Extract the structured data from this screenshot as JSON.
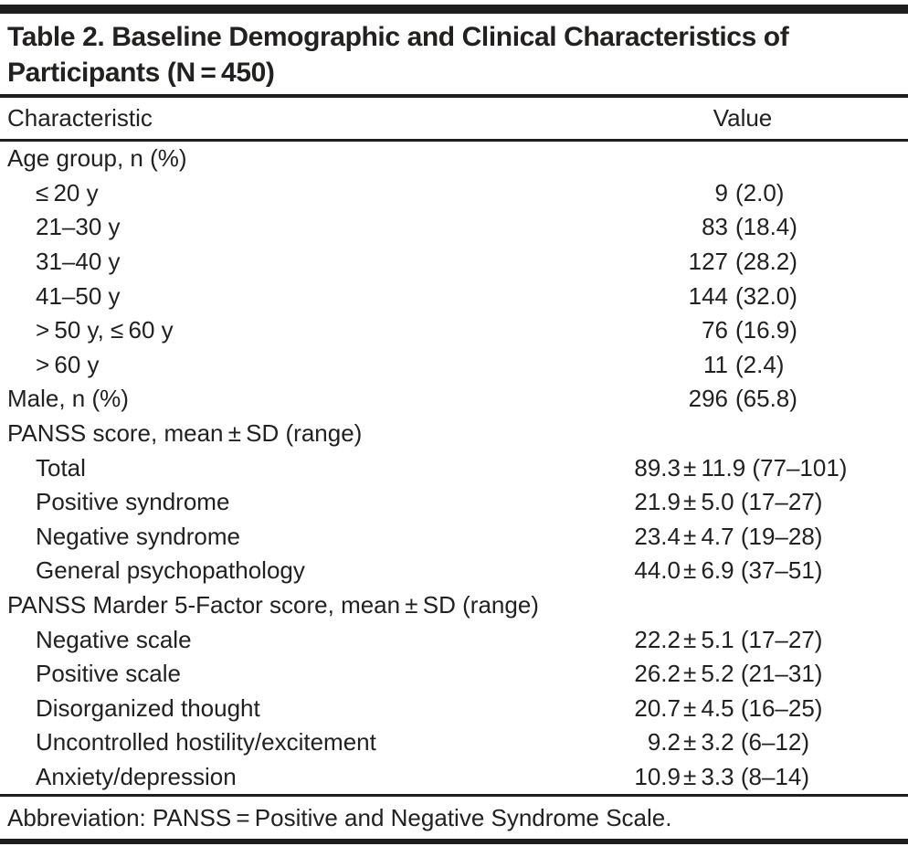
{
  "table": {
    "title_line1": "Table 2. Baseline Demographic and Clinical Characteristics of",
    "title_line2": "Participants (N = 450)",
    "columns": {
      "characteristic": "Characteristic",
      "value": "Value"
    },
    "rows": [
      {
        "label": "Age group, n (%)",
        "num": "",
        "rest": ""
      },
      {
        "label": "≤ 20 y",
        "num": "9",
        "rest": "(2.0)"
      },
      {
        "label": "21–30 y",
        "num": "83",
        "rest": "(18.4)"
      },
      {
        "label": "31–40 y",
        "num": "127",
        "rest": "(28.2)"
      },
      {
        "label": "41–50 y",
        "num": "144",
        "rest": "(32.0)"
      },
      {
        "label": "> 50 y, ≤ 60 y",
        "num": "76",
        "rest": "(16.9)"
      },
      {
        "label": "> 60 y",
        "num": "11",
        "rest": "(2.4)"
      },
      {
        "label": "Male, n (%)",
        "num": "296",
        "rest": "(65.8)"
      },
      {
        "label": "PANSS score, mean ± SD (range)",
        "num": "",
        "rest": ""
      },
      {
        "label": "Total",
        "num": "89.3",
        "rest": "± 11.9 (77–101)"
      },
      {
        "label": "Positive syndrome",
        "num": "21.9",
        "rest": "± 5.0 (17–27)"
      },
      {
        "label": "Negative syndrome",
        "num": "23.4",
        "rest": "± 4.7 (19–28)"
      },
      {
        "label": "General psychopathology",
        "num": "44.0",
        "rest": "± 6.9 (37–51)"
      },
      {
        "label": "PANSS Marder 5-Factor score, mean ± SD (range)",
        "num": "",
        "rest": ""
      },
      {
        "label": "Negative scale",
        "num": "22.2",
        "rest": "± 5.1 (17–27)"
      },
      {
        "label": "Positive scale",
        "num": "26.2",
        "rest": "± 5.2 (21–31)"
      },
      {
        "label": "Disorganized thought",
        "num": "20.7",
        "rest": "± 4.5 (16–25)"
      },
      {
        "label": "Uncontrolled hostility/excitement",
        "num": "9.2",
        "rest": "± 3.2 (6–12)"
      },
      {
        "label": "Anxiety/depression",
        "num": "10.9",
        "rest": "± 3.3 (8–14)"
      }
    ],
    "footnote": "Abbreviation: PANSS = Positive and Negative Syndrome Scale.",
    "colors": {
      "rule": "#1e1e1e",
      "text": "#232020",
      "background": "#ffffff"
    }
  }
}
